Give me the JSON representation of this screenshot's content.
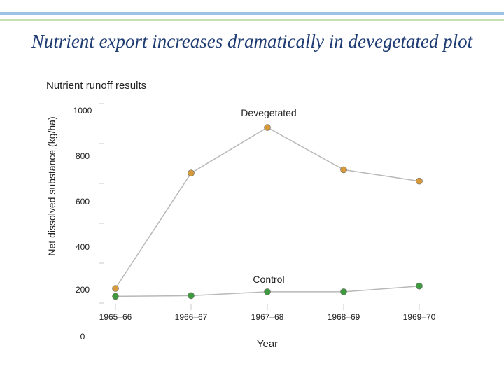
{
  "page": {
    "title": "Nutrient export increases dramatically in devegetated plot"
  },
  "chart_data": {
    "type": "line",
    "title": "Nutrient runoff results",
    "xlabel": "Year",
    "ylabel": "Net dissolved substance (kg/ha)",
    "categories": [
      "1965–66",
      "1966–67",
      "1967–68",
      "1968–69",
      "1969–70"
    ],
    "ylim": [
      0,
      1000
    ],
    "yticks": [
      1000,
      800,
      600,
      400,
      200,
      0
    ],
    "grid": false,
    "legend": "none",
    "series": [
      {
        "name": "Devegetated",
        "values": [
          215,
          720,
          920,
          735,
          685
        ],
        "color": "#d69a3a"
      },
      {
        "name": "Control",
        "values": [
          180,
          183,
          200,
          200,
          225
        ],
        "color": "#3f9a3f"
      }
    ]
  }
}
